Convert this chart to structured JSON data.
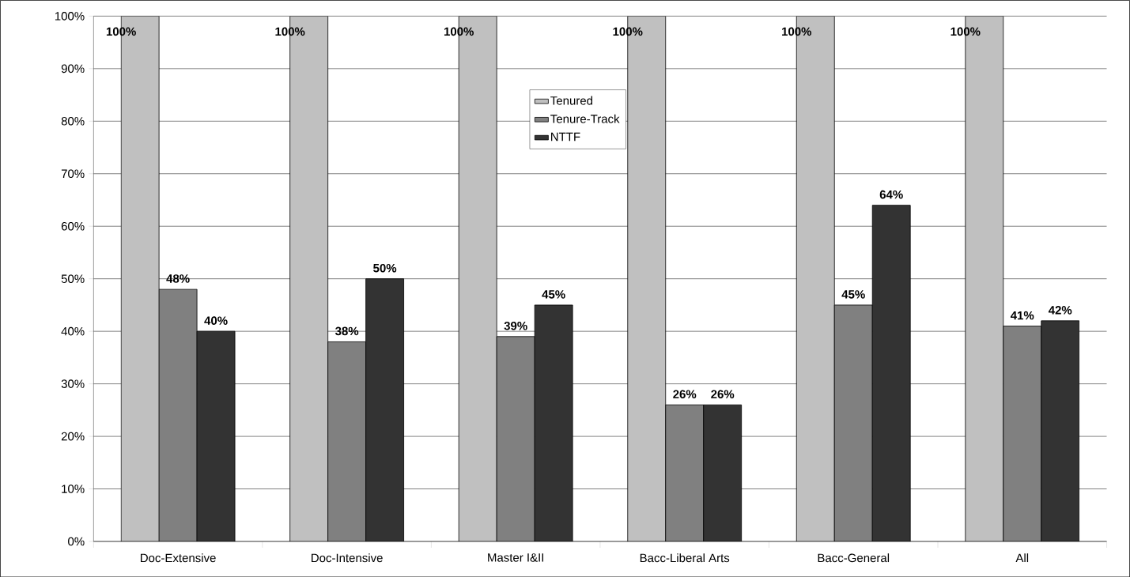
{
  "chart_data": {
    "type": "bar",
    "categories": [
      "Doc-Extensive",
      "Doc-Intensive",
      "Master I&II",
      "Bacc-Liberal Arts",
      "Bacc-General",
      "All"
    ],
    "series": [
      {
        "name": "Tenured",
        "color": "#c0c0c0",
        "values": [
          100,
          100,
          100,
          100,
          100,
          100
        ],
        "value_labels": [
          "100%",
          "100%",
          "100%",
          "100%",
          "100%",
          "100%"
        ]
      },
      {
        "name": "Tenure-Track",
        "color": "#808080",
        "values": [
          48,
          38,
          39,
          26,
          45,
          41
        ],
        "value_labels": [
          "48%",
          "38%",
          "39%",
          "26%",
          "45%",
          "41%"
        ]
      },
      {
        "name": "NTTF",
        "color": "#333333",
        "values": [
          40,
          50,
          45,
          26,
          64,
          42
        ],
        "value_labels": [
          "40%",
          "50%",
          "45%",
          "26%",
          "64%",
          "42%"
        ]
      }
    ],
    "ylim": [
      0,
      100
    ],
    "yticks": [
      {
        "value": 0,
        "label": "0%"
      },
      {
        "value": 10,
        "label": "10%"
      },
      {
        "value": 20,
        "label": "20%"
      },
      {
        "value": 30,
        "label": "30%"
      },
      {
        "value": 40,
        "label": "40%"
      },
      {
        "value": 50,
        "label": "50%"
      },
      {
        "value": 60,
        "label": "60%"
      },
      {
        "value": 70,
        "label": "70%"
      },
      {
        "value": 80,
        "label": "80%"
      },
      {
        "value": 90,
        "label": "90%"
      },
      {
        "value": 100,
        "label": "100%"
      }
    ],
    "grid": "y",
    "legend": "top"
  }
}
